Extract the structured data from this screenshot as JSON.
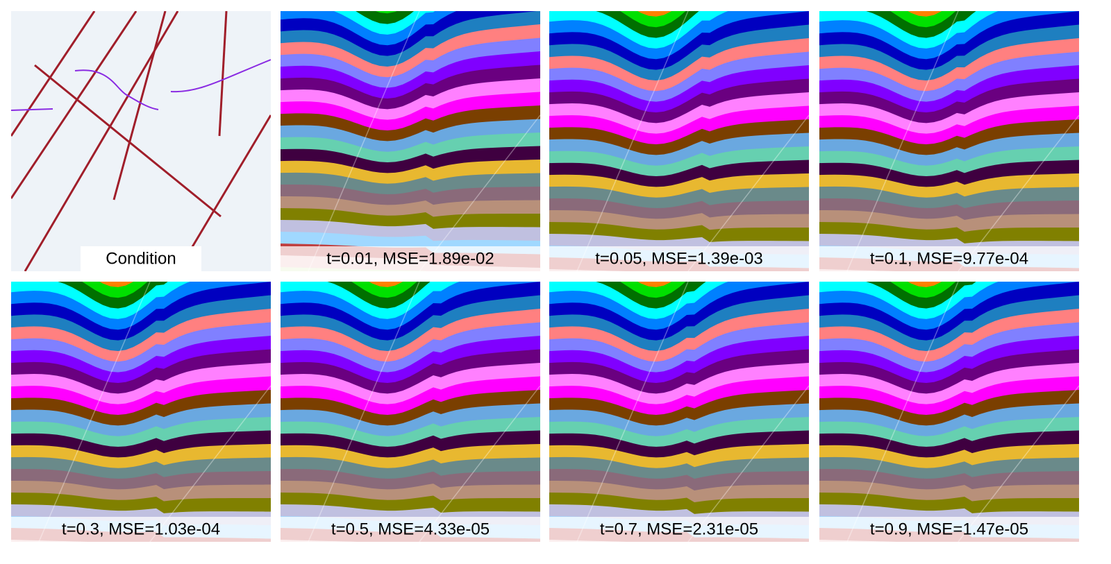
{
  "panels": [
    {
      "caption": "Condition"
    },
    {
      "caption": "t=0.01, MSE=1.89e-02"
    },
    {
      "caption": "t=0.05, MSE=1.39e-03"
    },
    {
      "caption": "t=0.1, MSE=9.77e-04"
    },
    {
      "caption": "t=0.3, MSE=1.03e-04"
    },
    {
      "caption": "t=0.5, MSE=4.33e-05"
    },
    {
      "caption": "t=0.7, MSE=2.31e-05"
    },
    {
      "caption": "t=0.9, MSE=1.47e-05"
    }
  ]
}
